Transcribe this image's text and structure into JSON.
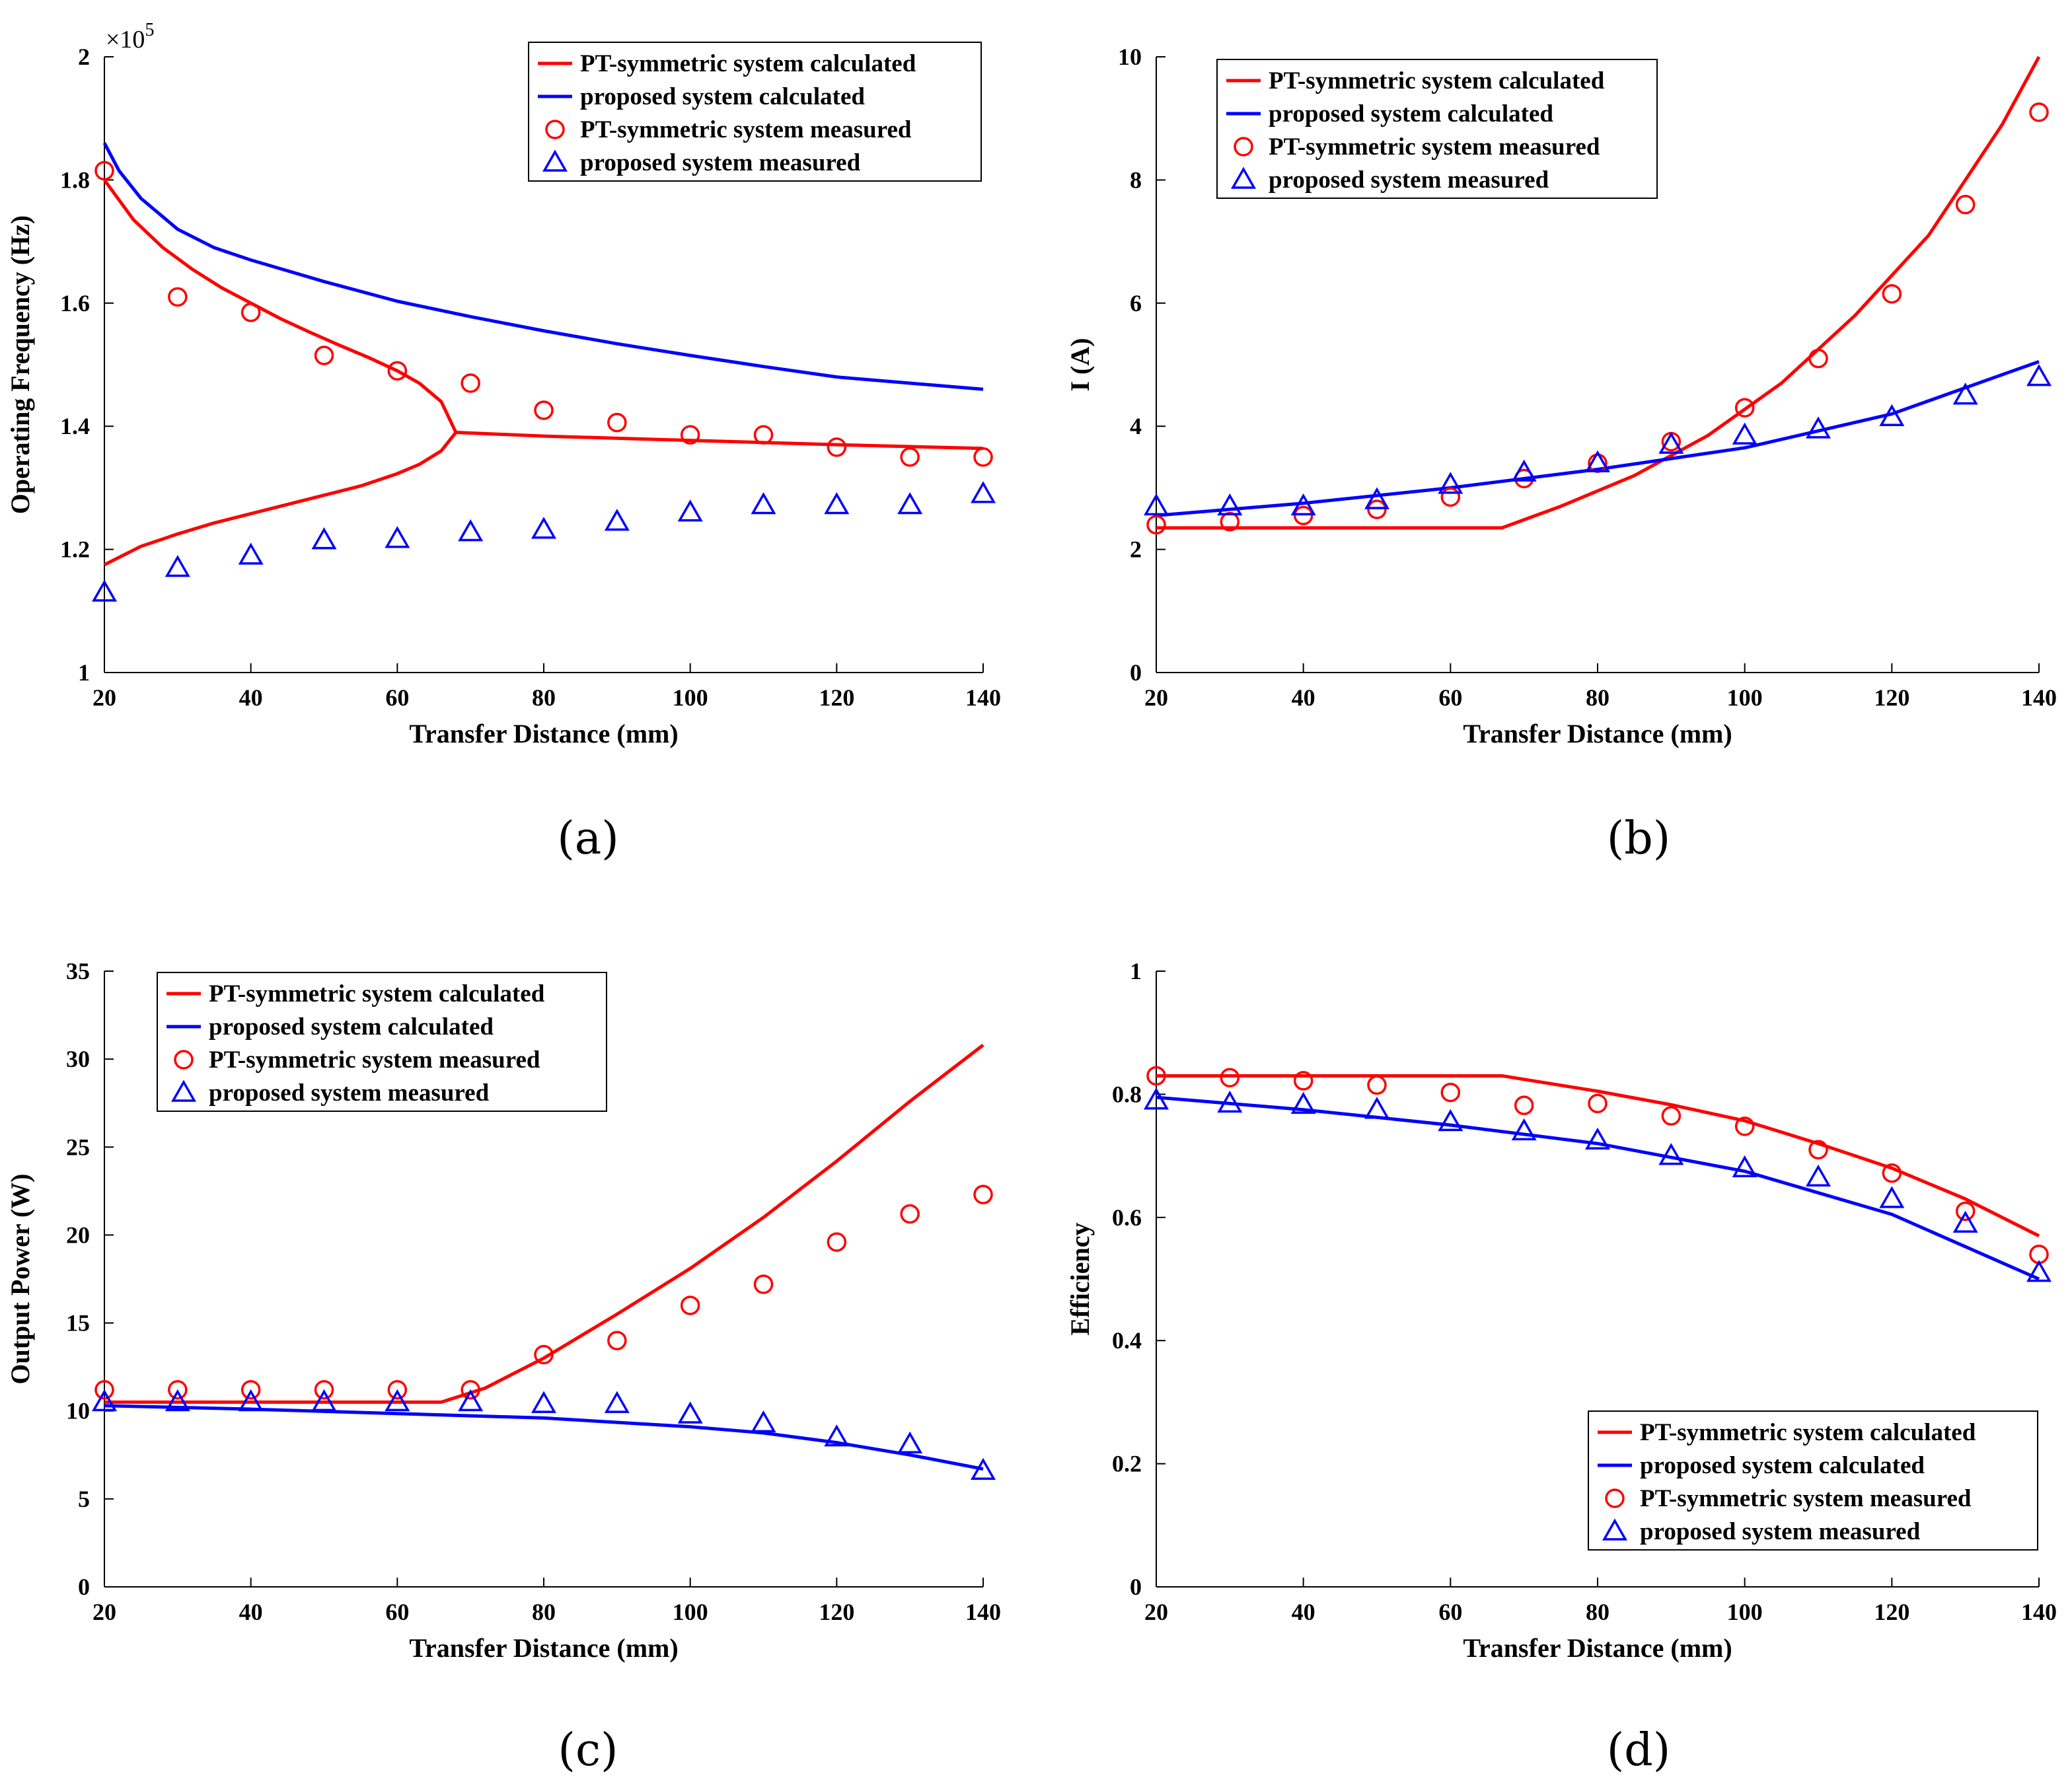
{
  "chart_data": [
    {
      "panel_label": "(a)",
      "type": "line",
      "xlabel": "Transfer Distance (mm)",
      "ylabel": "Operating Frequency (Hz)",
      "xlim": [
        20,
        140
      ],
      "ylim": [
        1.0,
        2.0
      ],
      "y_multiplier": "×10^5",
      "exp_prefix": "×10",
      "exp_power": "5",
      "xticks": [
        "20",
        "40",
        "60",
        "80",
        "100",
        "120",
        "140"
      ],
      "yticks": [
        "1",
        "1.2",
        "1.4",
        "1.6",
        "1.8",
        "2"
      ],
      "xtick_values": [
        20,
        40,
        60,
        80,
        100,
        120,
        140
      ],
      "ytick_values": [
        1.0,
        1.2,
        1.4,
        1.6,
        1.8,
        2.0
      ],
      "grid": false,
      "legend_position": "top-right",
      "series": [
        {
          "name": "PT-symmetric system calculated",
          "kind": "line",
          "color": "#ff0000",
          "x": [
            20,
            24,
            28,
            32,
            36,
            40,
            44,
            48,
            52,
            56,
            60,
            63,
            66,
            68
          ],
          "y": [
            1.8,
            1.735,
            1.69,
            1.655,
            1.625,
            1.6,
            1.575,
            1.553,
            1.532,
            1.512,
            1.49,
            1.47,
            1.44,
            1.39
          ]
        },
        {
          "name": "",
          "kind": "line",
          "color": "#ff0000",
          "x": [
            20,
            25,
            30,
            35,
            40,
            45,
            50,
            55,
            60,
            63,
            66,
            68
          ],
          "y": [
            1.175,
            1.205,
            1.225,
            1.243,
            1.258,
            1.273,
            1.288,
            1.303,
            1.323,
            1.338,
            1.36,
            1.39
          ]
        },
        {
          "name": "",
          "kind": "line",
          "color": "#ff0000",
          "x": [
            68,
            80,
            100,
            120,
            140
          ],
          "y": [
            1.39,
            1.384,
            1.377,
            1.37,
            1.364
          ]
        },
        {
          "name": "proposed system calculated",
          "kind": "line",
          "color": "#0000ff",
          "x": [
            20,
            22,
            25,
            30,
            35,
            40,
            50,
            60,
            70,
            80,
            90,
            100,
            110,
            120,
            130,
            140
          ],
          "y": [
            1.86,
            1.815,
            1.77,
            1.72,
            1.69,
            1.67,
            1.635,
            1.603,
            1.578,
            1.555,
            1.534,
            1.515,
            1.497,
            1.48,
            1.47,
            1.46
          ]
        },
        {
          "name": "PT-symmetric system measured",
          "kind": "circle",
          "color": "#ff0000",
          "x": [
            20,
            30,
            40,
            50,
            60,
            70,
            80,
            90,
            100,
            110,
            120,
            130,
            140
          ],
          "y": [
            1.815,
            1.61,
            1.585,
            1.515,
            1.49,
            1.47,
            1.426,
            1.406,
            1.386,
            1.386,
            1.366,
            1.35,
            1.35
          ]
        },
        {
          "name": "proposed system measured",
          "kind": "triangle",
          "color": "#0000ff",
          "x": [
            20,
            30,
            40,
            50,
            60,
            70,
            80,
            90,
            100,
            110,
            120,
            130,
            140
          ],
          "y": [
            1.13,
            1.17,
            1.19,
            1.215,
            1.217,
            1.228,
            1.232,
            1.245,
            1.26,
            1.272,
            1.272,
            1.272,
            1.29
          ]
        }
      ]
    },
    {
      "panel_label": "(b)",
      "type": "line",
      "xlabel": "Transfer Distance (mm)",
      "ylabel": "I (A)",
      "xlim": [
        20,
        140
      ],
      "ylim": [
        0,
        10
      ],
      "xticks": [
        "20",
        "40",
        "60",
        "80",
        "100",
        "120",
        "140"
      ],
      "yticks": [
        "0",
        "2",
        "4",
        "6",
        "8",
        "10"
      ],
      "xtick_values": [
        20,
        40,
        60,
        80,
        100,
        120,
        140
      ],
      "ytick_values": [
        0,
        2,
        4,
        6,
        8,
        10
      ],
      "grid": false,
      "legend_position": "top-left",
      "series": [
        {
          "name": "PT-symmetric system calculated",
          "kind": "line",
          "color": "#ff0000",
          "x": [
            20,
            67,
            75,
            85,
            95,
            105,
            115,
            125,
            135,
            140
          ],
          "y": [
            2.35,
            2.35,
            2.7,
            3.2,
            3.85,
            4.7,
            5.8,
            7.1,
            8.9,
            10.0
          ]
        },
        {
          "name": "proposed system calculated",
          "kind": "line",
          "color": "#0000ff",
          "x": [
            20,
            40,
            60,
            80,
            100,
            120,
            140
          ],
          "y": [
            2.55,
            2.75,
            3.0,
            3.3,
            3.65,
            4.2,
            5.05
          ]
        },
        {
          "name": "PT-symmetric system measured",
          "kind": "circle",
          "color": "#ff0000",
          "x": [
            20,
            30,
            40,
            50,
            60,
            70,
            80,
            90,
            100,
            110,
            120,
            130,
            140
          ],
          "y": [
            2.4,
            2.45,
            2.55,
            2.65,
            2.85,
            3.15,
            3.4,
            3.75,
            4.3,
            5.1,
            6.15,
            7.6,
            9.1
          ]
        },
        {
          "name": "proposed system measured",
          "kind": "triangle",
          "color": "#0000ff",
          "x": [
            20,
            30,
            40,
            50,
            60,
            70,
            80,
            90,
            100,
            110,
            120,
            130,
            140
          ],
          "y": [
            2.7,
            2.7,
            2.7,
            2.8,
            3.05,
            3.25,
            3.4,
            3.7,
            3.85,
            3.95,
            4.15,
            4.5,
            4.8
          ]
        }
      ]
    },
    {
      "panel_label": "(c)",
      "type": "line",
      "xlabel": "Transfer Distance (mm)",
      "ylabel": "Output Power (W)",
      "xlim": [
        20,
        140
      ],
      "ylim": [
        0,
        35
      ],
      "xticks": [
        "20",
        "40",
        "60",
        "80",
        "100",
        "120",
        "140"
      ],
      "yticks": [
        "0",
        "5",
        "10",
        "15",
        "20",
        "25",
        "30",
        "35"
      ],
      "xtick_values": [
        20,
        40,
        60,
        80,
        100,
        120,
        140
      ],
      "ytick_values": [
        0,
        5,
        10,
        15,
        20,
        25,
        30,
        35
      ],
      "grid": false,
      "legend_position": "top-left",
      "series": [
        {
          "name": "PT-symmetric system calculated",
          "kind": "line",
          "color": "#ff0000",
          "x": [
            20,
            66,
            72,
            80,
            90,
            100,
            110,
            120,
            130,
            140
          ],
          "y": [
            10.5,
            10.5,
            11.3,
            13.0,
            15.5,
            18.1,
            21.0,
            24.2,
            27.6,
            30.8
          ]
        },
        {
          "name": "proposed system calculated",
          "kind": "line",
          "color": "#0000ff",
          "x": [
            20,
            40,
            60,
            80,
            100,
            110,
            120,
            130,
            140
          ],
          "y": [
            10.3,
            10.1,
            9.85,
            9.6,
            9.1,
            8.75,
            8.2,
            7.5,
            6.7
          ]
        },
        {
          "name": "PT-symmetric system measured",
          "kind": "circle",
          "color": "#ff0000",
          "x": [
            20,
            30,
            40,
            50,
            60,
            70,
            80,
            90,
            100,
            110,
            120,
            130,
            140
          ],
          "y": [
            11.2,
            11.2,
            11.2,
            11.2,
            11.2,
            11.2,
            13.2,
            14.0,
            16.0,
            17.2,
            19.6,
            21.2,
            22.3
          ]
        },
        {
          "name": "proposed system measured",
          "kind": "triangle",
          "color": "#0000ff",
          "x": [
            20,
            30,
            40,
            50,
            60,
            70,
            80,
            90,
            100,
            110,
            120,
            130,
            140
          ],
          "y": [
            10.5,
            10.5,
            10.5,
            10.5,
            10.5,
            10.5,
            10.4,
            10.4,
            9.8,
            9.3,
            8.5,
            8.1,
            6.6
          ]
        }
      ]
    },
    {
      "panel_label": "(d)",
      "type": "line",
      "xlabel": "Transfer Distance (mm)",
      "ylabel": "Efficiency",
      "xlim": [
        20,
        140
      ],
      "ylim": [
        0,
        1
      ],
      "xticks": [
        "20",
        "40",
        "60",
        "80",
        "100",
        "120",
        "140"
      ],
      "yticks": [
        "0",
        "0.2",
        "0.4",
        "0.6",
        "0.8",
        "1"
      ],
      "xtick_values": [
        20,
        40,
        60,
        80,
        100,
        120,
        140
      ],
      "ytick_values": [
        0,
        0.2,
        0.4,
        0.6,
        0.8,
        1.0
      ],
      "grid": false,
      "legend_position": "bottom-right",
      "series": [
        {
          "name": "PT-symmetric system calculated",
          "kind": "line",
          "color": "#ff0000",
          "x": [
            20,
            67,
            80,
            90,
            100,
            110,
            120,
            130,
            140
          ],
          "y": [
            0.83,
            0.83,
            0.805,
            0.783,
            0.757,
            0.72,
            0.68,
            0.63,
            0.57
          ]
        },
        {
          "name": "proposed system calculated",
          "kind": "line",
          "color": "#0000ff",
          "x": [
            20,
            40,
            60,
            80,
            100,
            120,
            140
          ],
          "y": [
            0.795,
            0.775,
            0.75,
            0.72,
            0.675,
            0.605,
            0.5
          ]
        },
        {
          "name": "PT-symmetric system measured",
          "kind": "circle",
          "color": "#ff0000",
          "x": [
            20,
            30,
            40,
            50,
            60,
            70,
            80,
            90,
            100,
            110,
            120,
            130,
            140
          ],
          "y": [
            0.83,
            0.827,
            0.822,
            0.815,
            0.803,
            0.782,
            0.785,
            0.765,
            0.748,
            0.71,
            0.672,
            0.61,
            0.54
          ]
        },
        {
          "name": "proposed system measured",
          "kind": "triangle",
          "color": "#0000ff",
          "x": [
            20,
            30,
            40,
            50,
            60,
            70,
            80,
            90,
            100,
            110,
            120,
            130,
            140
          ],
          "y": [
            0.79,
            0.785,
            0.783,
            0.775,
            0.755,
            0.74,
            0.725,
            0.7,
            0.68,
            0.665,
            0.63,
            0.59,
            0.51
          ]
        }
      ]
    }
  ],
  "colors": {
    "pt": "#ff0000",
    "proposed": "#0000ff",
    "axis": "#000000"
  }
}
